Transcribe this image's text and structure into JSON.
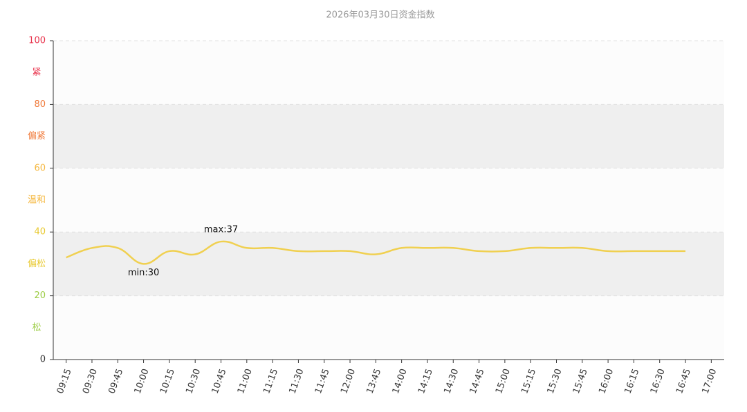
{
  "chart_data": {
    "type": "line",
    "title": "2026年03月30日资金指数",
    "categories": [
      "09:15",
      "09:30",
      "09:45",
      "10:00",
      "10:15",
      "10:30",
      "10:45",
      "11:00",
      "11:15",
      "11:30",
      "11:45",
      "12:00",
      "13:45",
      "14:00",
      "14:15",
      "14:30",
      "14:45",
      "15:00",
      "15:15",
      "15:30",
      "15:45",
      "16:00",
      "16:15",
      "16:30",
      "16:45",
      "17:00"
    ],
    "series": [
      {
        "name": "资金指数",
        "color": "#f0d050",
        "values": [
          32,
          35,
          35,
          30,
          34,
          33,
          37,
          35,
          35,
          34,
          34,
          34,
          33,
          35,
          35,
          35,
          34,
          34,
          35,
          35,
          35,
          34,
          34,
          34,
          34,
          null
        ]
      }
    ],
    "ylim": [
      0,
      100
    ],
    "yticks": [
      0,
      20,
      40,
      60,
      80,
      100
    ],
    "ytick_colors": [
      "#333333",
      "#9ccc44",
      "#e8c930",
      "#f5b840",
      "#f07a3a",
      "#e8314a"
    ],
    "bands": [
      {
        "label": "松",
        "from": 0,
        "to": 20,
        "color": "#9ccc44",
        "fill": "#fcfcfc"
      },
      {
        "label": "偏松",
        "from": 20,
        "to": 40,
        "color": "#e8c930",
        "fill": "#efefef"
      },
      {
        "label": "温和",
        "from": 40,
        "to": 60,
        "color": "#f5b840",
        "fill": "#fcfcfc"
      },
      {
        "label": "偏紧",
        "from": 60,
        "to": 80,
        "color": "#f07a3a",
        "fill": "#efefef"
      },
      {
        "label": "紧",
        "from": 80,
        "to": 100,
        "color": "#e8314a",
        "fill": "#fcfcfc"
      }
    ],
    "annotations": [
      "max:37",
      "min:30"
    ],
    "grid": true
  }
}
